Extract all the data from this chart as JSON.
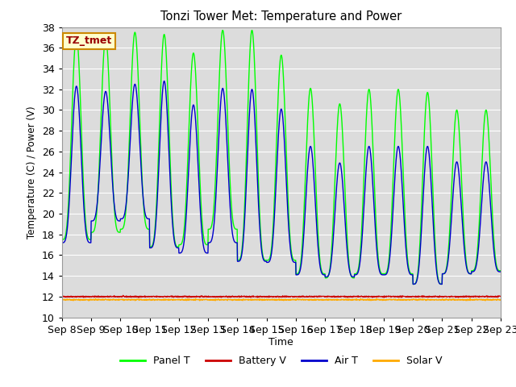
{
  "title": "Tonzi Tower Met: Temperature and Power",
  "xlabel": "Time",
  "ylabel": "Temperature (C) / Power (V)",
  "ylim": [
    10,
    38
  ],
  "bg_color": "#dcdcdc",
  "fig_bg": "#ffffff",
  "annotation_text": "TZ_tmet",
  "annotation_bg": "#ffffcc",
  "annotation_border": "#cc8800",
  "annotation_text_color": "#990000",
  "legend_entries": [
    "Panel T",
    "Battery V",
    "Air T",
    "Solar V"
  ],
  "legend_colors": [
    "#00ff00",
    "#cc0000",
    "#0000cc",
    "#ffaa00"
  ],
  "x_tick_labels": [
    "Sep 8",
    "Sep 9",
    "Sep 10",
    "Sep 11",
    "Sep 12",
    "Sep 13",
    "Sep 14",
    "Sep 15",
    "Sep 16",
    "Sep 17",
    "Sep 18",
    "Sep 19",
    "Sep 20",
    "Sep 21",
    "Sep 22",
    "Sep 23"
  ],
  "n_days": 16,
  "panel_peaks": [
    37.2,
    37.0,
    37.5,
    37.3,
    35.5,
    37.7,
    37.7,
    35.3,
    32.1,
    30.6,
    32.0,
    32.0,
    31.7,
    30.0,
    30.0
  ],
  "panel_troughs": [
    17.5,
    18.2,
    18.5,
    16.8,
    17.0,
    18.5,
    15.5,
    15.5,
    14.2,
    13.8,
    14.2,
    14.2,
    13.2,
    14.2,
    14.5
  ],
  "air_peaks": [
    32.3,
    31.8,
    32.5,
    32.8,
    30.5,
    32.1,
    32.0,
    30.1,
    26.5,
    24.9,
    26.5,
    26.5,
    26.5,
    25.0,
    25.0
  ],
  "air_troughs": [
    17.2,
    19.3,
    19.5,
    16.7,
    16.2,
    17.2,
    15.4,
    15.3,
    14.1,
    13.9,
    14.1,
    14.1,
    13.2,
    14.2,
    14.4
  ],
  "battery_v": 12.0,
  "solar_v": 11.7,
  "yticks": [
    10,
    12,
    14,
    16,
    18,
    20,
    22,
    24,
    26,
    28,
    30,
    32,
    34,
    36,
    38
  ]
}
